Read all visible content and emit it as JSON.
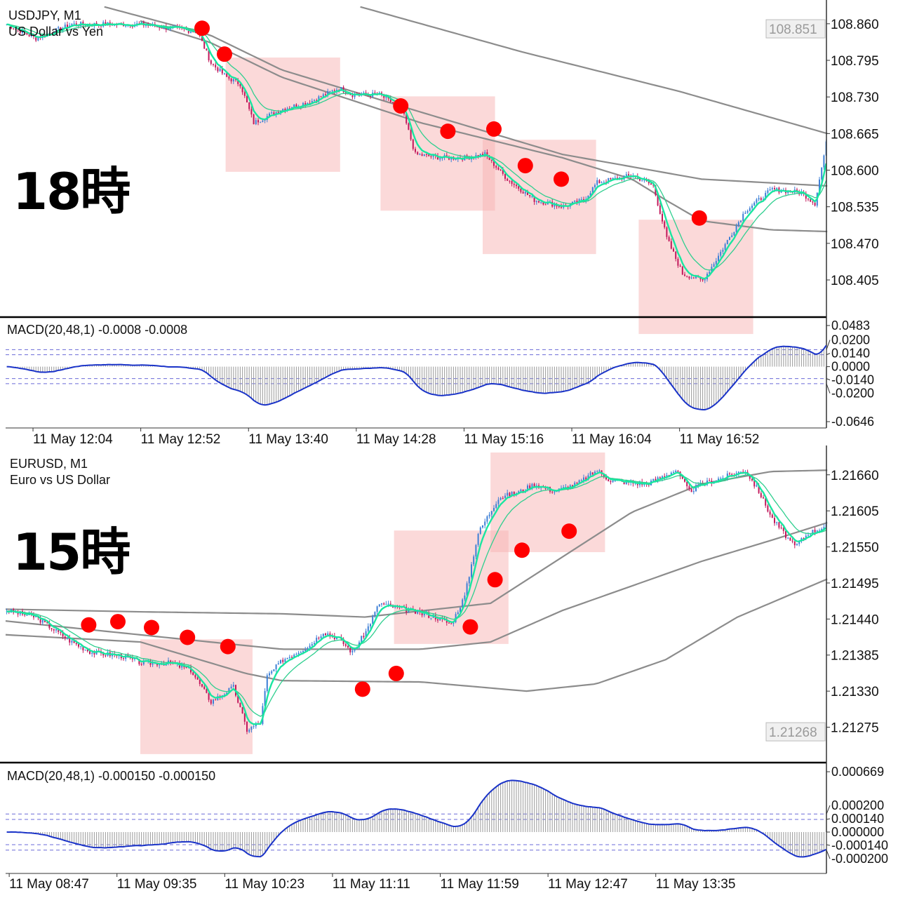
{
  "chart_data": [
    {
      "type": "candlestick",
      "symbol": "USDJPY, M1",
      "description": "US Dollar vs Yen",
      "annotation_label": "18時",
      "price_ticks": [
        "108.860",
        "108.795",
        "108.730",
        "108.665",
        "108.600",
        "108.535",
        "108.470",
        "108.405"
      ],
      "current_price": "108.851",
      "time_labels": [
        "11 May 12:04",
        "11 May 12:52",
        "11 May 13:40",
        "11 May 14:28",
        "11 May 15:16",
        "11 May 16:04",
        "11 May 16:52"
      ],
      "close_keypoints_minute_price": [
        [
          0,
          108.859
        ],
        [
          13,
          108.834
        ],
        [
          29,
          108.859
        ],
        [
          60,
          108.859
        ],
        [
          85,
          108.846
        ],
        [
          91,
          108.79
        ],
        [
          98,
          108.765
        ],
        [
          104,
          108.753
        ],
        [
          110,
          108.684
        ],
        [
          123,
          108.709
        ],
        [
          135,
          108.721
        ],
        [
          148,
          108.746
        ],
        [
          154,
          108.734
        ],
        [
          166,
          108.734
        ],
        [
          176,
          108.709
        ],
        [
          182,
          108.628
        ],
        [
          194,
          108.622
        ],
        [
          204,
          108.622
        ],
        [
          213,
          108.628
        ],
        [
          223,
          108.584
        ],
        [
          235,
          108.547
        ],
        [
          248,
          108.535
        ],
        [
          257,
          108.547
        ],
        [
          263,
          108.578
        ],
        [
          279,
          108.591
        ],
        [
          288,
          108.572
        ],
        [
          294,
          108.479
        ],
        [
          301,
          108.416
        ],
        [
          310,
          108.404
        ],
        [
          316,
          108.441
        ],
        [
          329,
          108.528
        ],
        [
          341,
          108.566
        ],
        [
          354,
          108.56
        ],
        [
          360,
          108.541
        ],
        [
          365,
          108.647
        ]
      ],
      "noise": 0.009,
      "gray_ma_lines": [
        [
          [
            158,
            108.89
          ],
          [
            230,
            108.81
          ],
          [
            300,
            108.74
          ],
          [
            366,
            108.665
          ]
        ],
        [
          [
            44,
            108.89
          ],
          [
            91,
            108.84
          ],
          [
            123,
            108.778
          ],
          [
            185,
            108.703
          ],
          [
            248,
            108.628
          ],
          [
            310,
            108.584
          ],
          [
            366,
            108.572
          ]
        ],
        [
          [
            60,
            108.865
          ],
          [
            91,
            108.827
          ],
          [
            123,
            108.765
          ],
          [
            185,
            108.684
          ],
          [
            248,
            108.622
          ],
          [
            279,
            108.584
          ],
          [
            294,
            108.547
          ],
          [
            310,
            108.51
          ],
          [
            341,
            108.494
          ],
          [
            366,
            108.491
          ]
        ]
      ],
      "highlight_boxes_minute_price": [
        [
          98,
          149,
          108.8,
          108.597
        ],
        [
          167,
          218,
          108.731,
          108.528
        ],
        [
          212.5,
          263,
          108.654,
          108.451
        ],
        [
          282,
          333,
          108.512,
          108.309
        ]
      ],
      "red_dots_minute_price": [
        [
          87.5,
          108.852
        ],
        [
          97.5,
          108.806
        ],
        [
          176,
          108.714
        ],
        [
          197,
          108.669
        ],
        [
          217.5,
          108.673
        ],
        [
          231.5,
          108.608
        ],
        [
          247.5,
          108.584
        ],
        [
          309,
          108.515
        ]
      ],
      "macd": {
        "label": "MACD(20,48,1) -0.0008 -0.0008",
        "ticks": [
          "0.0483",
          "0.0200",
          "0.0140",
          "0.0000",
          "-0.0140",
          "-0.0200",
          "-0.0646"
        ],
        "levels": [
          0.02,
          0.014,
          -0.014,
          -0.02
        ],
        "range": [
          -0.072,
          0.0557
        ]
      },
      "yrange": [
        108.339,
        108.8897
      ]
    },
    {
      "type": "candlestick",
      "symbol": "EURUSD, M1",
      "description": "Euro vs US Dollar",
      "annotation_label": "15時",
      "price_ticks": [
        "1.21660",
        "1.21605",
        "1.21550",
        "1.21495",
        "1.21440",
        "1.21385",
        "1.21330",
        "1.21275"
      ],
      "current_price": "1.21268",
      "time_labels": [
        "11 May 08:47",
        "11 May 09:35",
        "11 May 10:23",
        "11 May 11:11",
        "11 May 11:59",
        "11 May 12:47",
        "11 May 13:35"
      ],
      "close_keypoints_minute_price": [
        [
          0,
          1.21453
        ],
        [
          13,
          1.21443
        ],
        [
          29,
          1.21405
        ],
        [
          38,
          1.21389
        ],
        [
          51,
          1.21384
        ],
        [
          60,
          1.21373
        ],
        [
          73,
          1.21373
        ],
        [
          82,
          1.21362
        ],
        [
          91,
          1.21314
        ],
        [
          101,
          1.21336
        ],
        [
          107,
          1.21271
        ],
        [
          113,
          1.21282
        ],
        [
          116,
          1.21352
        ],
        [
          123,
          1.21378
        ],
        [
          135,
          1.214
        ],
        [
          141,
          1.21421
        ],
        [
          148,
          1.2141
        ],
        [
          154,
          1.21389
        ],
        [
          160,
          1.21421
        ],
        [
          166,
          1.21464
        ],
        [
          179,
          1.21453
        ],
        [
          191,
          1.21443
        ],
        [
          198,
          1.21432
        ],
        [
          204,
          1.21475
        ],
        [
          210,
          1.21571
        ],
        [
          219,
          1.21625
        ],
        [
          229,
          1.21635
        ],
        [
          235,
          1.21646
        ],
        [
          244,
          1.21635
        ],
        [
          254,
          1.21646
        ],
        [
          263,
          1.21667
        ],
        [
          269,
          1.21651
        ],
        [
          285,
          1.21646
        ],
        [
          298,
          1.21667
        ],
        [
          304,
          1.21635
        ],
        [
          310,
          1.21646
        ],
        [
          329,
          1.21667
        ],
        [
          335,
          1.21635
        ],
        [
          341,
          1.21593
        ],
        [
          351,
          1.2155
        ],
        [
          357,
          1.21571
        ],
        [
          365,
          1.21582
        ]
      ],
      "noise": 8e-05,
      "gray_ma_lines": [
        [
          [
            0,
            1.21455
          ],
          [
            60,
            1.21451
          ],
          [
            123,
            1.21448
          ],
          [
            160,
            1.21443
          ],
          [
            216,
            1.21464
          ],
          [
            279,
            1.21603
          ],
          [
            310,
            1.21646
          ],
          [
            341,
            1.21665
          ],
          [
            366,
            1.21667
          ]
        ],
        [
          [
            0,
            1.21437
          ],
          [
            91,
            1.21405
          ],
          [
            123,
            1.21394
          ],
          [
            185,
            1.21394
          ],
          [
            216,
            1.21405
          ],
          [
            248,
            1.21453
          ],
          [
            310,
            1.21528
          ],
          [
            341,
            1.2156
          ],
          [
            366,
            1.21587
          ]
        ],
        [
          [
            0,
            1.21416
          ],
          [
            60,
            1.21405
          ],
          [
            107,
            1.21357
          ],
          [
            123,
            1.21346
          ],
          [
            185,
            1.21344
          ],
          [
            232,
            1.2133
          ],
          [
            263,
            1.21341
          ],
          [
            294,
            1.21378
          ],
          [
            326,
            1.21443
          ],
          [
            366,
            1.21501
          ]
        ]
      ],
      "highlight_boxes_minute_price": [
        [
          60,
          110,
          1.21409,
          1.21234
        ],
        [
          173,
          224,
          1.21575,
          1.21402
        ],
        [
          216,
          267,
          1.21694,
          1.21542
        ]
      ],
      "red_dots_minute_price": [
        [
          37,
          1.21431
        ],
        [
          50,
          1.21436
        ],
        [
          65,
          1.21427
        ],
        [
          81,
          1.21412
        ],
        [
          99,
          1.21398
        ],
        [
          159,
          1.21333
        ],
        [
          174,
          1.21357
        ],
        [
          207,
          1.21428
        ],
        [
          218,
          1.215
        ],
        [
          230,
          1.21545
        ],
        [
          251,
          1.21574
        ]
      ],
      "macd": {
        "label": "MACD(20,48,1) -0.000150 -0.000150",
        "ticks": [
          "0.000669",
          "0.000200",
          "0.000140",
          "0.000000",
          "-0.000140",
          "-0.000200"
        ],
        "levels": [
          0.0002,
          0.00014,
          -0.00014,
          -0.0002
        ],
        "range": [
          -0.000459,
          0.000747
        ]
      },
      "yrange": [
        1.21221,
        1.21694
      ]
    }
  ],
  "colors": {
    "bull": "#3d7fd6",
    "bear": "#c2185b",
    "ma_fast": "#19e6a0",
    "ma_slow": "#2fcf8f",
    "ma_gray": "#8c8c8c",
    "box": "#f8b4b4",
    "dot": "#ff0000",
    "macd": "#1a33c8",
    "hist": "#9a9a9a",
    "level": "#6a6ad8"
  }
}
